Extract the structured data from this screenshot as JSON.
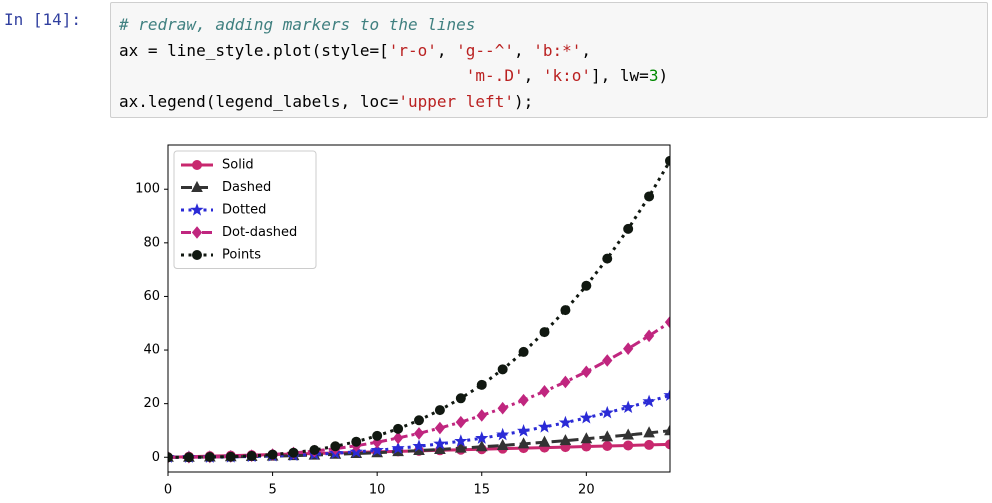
{
  "prompt": "In [14]:",
  "code": {
    "lines": [
      [
        {
          "text": "# redraw, adding markers to the lines",
          "style": "comment"
        }
      ],
      [
        {
          "text": "ax = line_style.plot(style=[",
          "style": "plain"
        },
        {
          "text": "'r-o'",
          "style": "string"
        },
        {
          "text": ", ",
          "style": "plain"
        },
        {
          "text": "'g--^'",
          "style": "string"
        },
        {
          "text": ", ",
          "style": "plain"
        },
        {
          "text": "'b:*'",
          "style": "string"
        },
        {
          "text": ",",
          "style": "plain"
        }
      ],
      [
        {
          "text": "                                    ",
          "style": "plain"
        },
        {
          "text": "'m-.D'",
          "style": "string"
        },
        {
          "text": ", ",
          "style": "plain"
        },
        {
          "text": "'k:o'",
          "style": "string"
        },
        {
          "text": "], lw=",
          "style": "plain"
        },
        {
          "text": "3",
          "style": "number"
        },
        {
          "text": ")",
          "style": "plain"
        }
      ],
      [
        {
          "text": "ax.legend(legend_labels, loc=",
          "style": "plain"
        },
        {
          "text": "'upper left'",
          "style": "string"
        },
        {
          "text": ");",
          "style": "plain"
        }
      ]
    ]
  },
  "chart_data": {
    "type": "line",
    "x": [
      0,
      1,
      2,
      3,
      4,
      5,
      6,
      7,
      8,
      9,
      10,
      11,
      12,
      13,
      14,
      15,
      16,
      17,
      18,
      19,
      20,
      21,
      22,
      23,
      24
    ],
    "xlim": [
      0,
      24
    ],
    "xticks": [
      0,
      5,
      10,
      15,
      20
    ],
    "ylim": [
      -5.5,
      116.5
    ],
    "yticks": [
      0,
      20,
      40,
      60,
      80,
      100
    ],
    "legend": "upper left",
    "series": [
      {
        "name": "Solid",
        "color": "#c8286e",
        "linestyle": "solid",
        "marker": "circle",
        "values": [
          0,
          0.2,
          0.4,
          0.6,
          0.8,
          1.0,
          1.2,
          1.4,
          1.6,
          1.8,
          2.0,
          2.2,
          2.4,
          2.6,
          2.8,
          3.0,
          3.2,
          3.4,
          3.6,
          3.8,
          4.0,
          4.2,
          4.4,
          4.6,
          4.8
        ]
      },
      {
        "name": "Dashed",
        "color": "#333333",
        "linestyle": "dashed",
        "marker": "triangle",
        "values": [
          0,
          0.0,
          0.1,
          0.2,
          0.3,
          0.4,
          0.6,
          0.8,
          1.1,
          1.4,
          1.7,
          2.1,
          2.5,
          2.9,
          3.4,
          3.9,
          4.4,
          5.0,
          5.6,
          6.2,
          6.9,
          7.6,
          8.3,
          9.1,
          9.9
        ]
      },
      {
        "name": "Dotted",
        "color": "#2b2bd6",
        "linestyle": "dotted",
        "marker": "star",
        "values": [
          0,
          0.0,
          0.0,
          0.1,
          0.3,
          0.5,
          0.7,
          1.1,
          1.5,
          2.0,
          2.6,
          3.3,
          4.1,
          5.0,
          6.0,
          7.1,
          8.4,
          9.8,
          11.3,
          12.9,
          14.7,
          16.6,
          18.6,
          20.8,
          23.1
        ]
      },
      {
        "name": "Dot-dashed",
        "color": "#c0267f",
        "linestyle": "dashdot",
        "marker": "diamond",
        "values": [
          0,
          0.0,
          0.1,
          0.3,
          0.6,
          1.0,
          1.6,
          2.3,
          3.2,
          4.3,
          5.6,
          7.2,
          8.9,
          10.9,
          13.1,
          15.6,
          18.3,
          21.3,
          24.6,
          28.1,
          31.9,
          36.1,
          40.5,
          45.3,
          50.4
        ]
      },
      {
        "name": "Points",
        "color": "#111811",
        "linestyle": "dotted",
        "marker": "circle",
        "values": [
          0,
          0.0,
          0.1,
          0.2,
          0.5,
          1.0,
          1.7,
          2.7,
          4.1,
          5.8,
          8.0,
          10.6,
          13.8,
          17.6,
          22.0,
          27.0,
          32.8,
          39.3,
          46.7,
          54.9,
          64.0,
          74.1,
          85.2,
          97.3,
          110.6
        ]
      }
    ]
  }
}
